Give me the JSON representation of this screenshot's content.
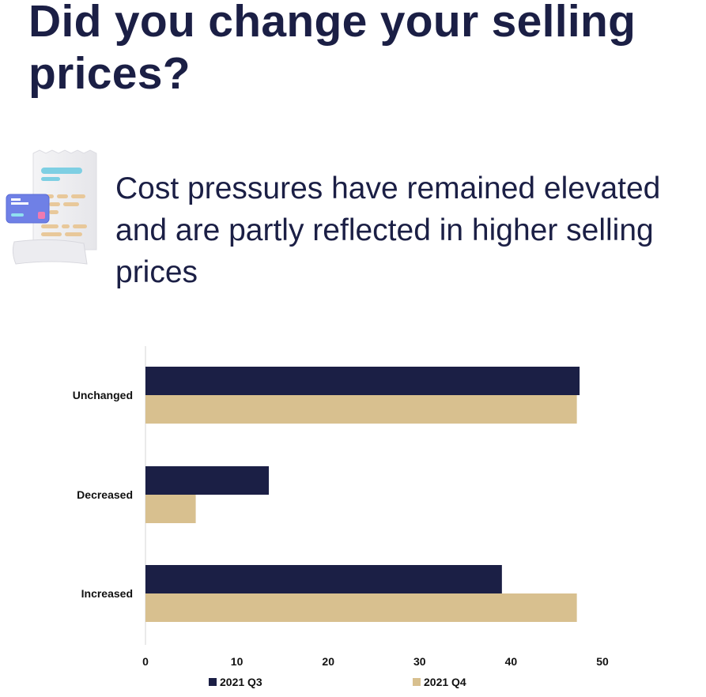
{
  "header": {
    "title": "Did you change your selling prices?",
    "subtitle": "Cost pressures have remained elevated and are partly reflected in higher selling prices"
  },
  "icons": {
    "illustration": "receipt-with-credit-card-icon"
  },
  "colors": {
    "navy": "#1b1f45",
    "tan": "#d8c08f"
  },
  "chart_data": {
    "type": "bar",
    "orientation": "horizontal",
    "categories": [
      "Unchanged",
      "Decreased",
      "Increased"
    ],
    "series": [
      {
        "name": "2021 Q3",
        "color": "#1b1f45",
        "values": [
          47.5,
          13.5,
          39
        ]
      },
      {
        "name": "2021 Q4",
        "color": "#d8c08f",
        "values": [
          47.2,
          5.5,
          47.2
        ]
      }
    ],
    "xlim": [
      0,
      50
    ],
    "xticks": [
      0,
      10,
      20,
      30,
      40,
      50
    ],
    "grid": false,
    "legend": "bottom"
  }
}
